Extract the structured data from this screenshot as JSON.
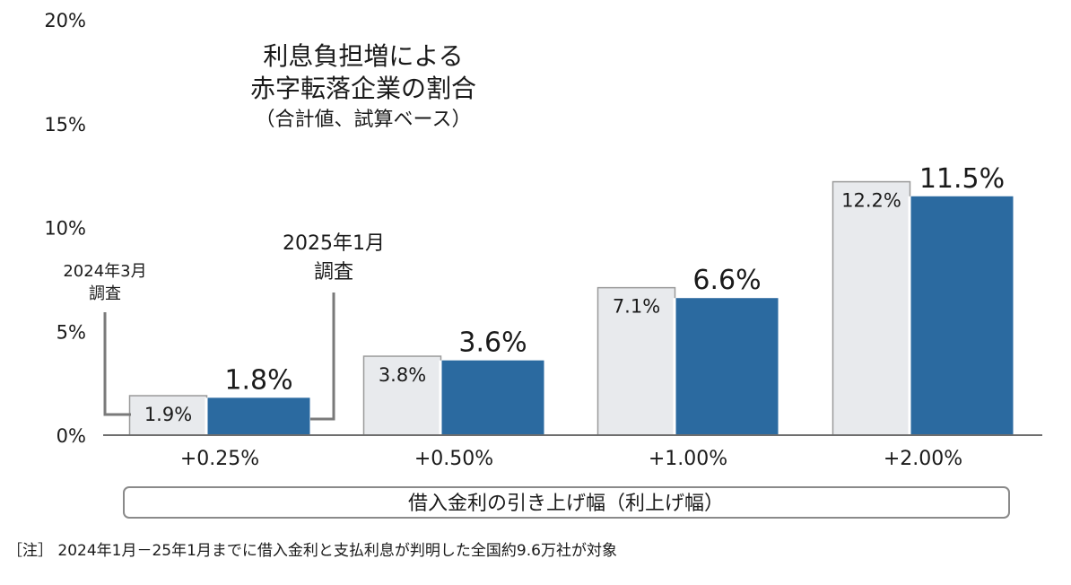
{
  "chart_data": {
    "type": "bar",
    "title_lines": [
      "利息負担増による",
      "赤字転落企業の割合"
    ],
    "subtitle": "（合計値、試算ベース）",
    "categories": [
      "+0.25%",
      "+0.50%",
      "+1.00%",
      "+2.00%"
    ],
    "series": [
      {
        "name": "2024年3月調査",
        "values": [
          1.9,
          3.8,
          7.1,
          12.2
        ],
        "labels": [
          "1.9%",
          "3.8%",
          "7.1%",
          "12.2%"
        ],
        "color": "#e8eaed"
      },
      {
        "name": "2025年1月調査",
        "values": [
          1.8,
          3.6,
          6.6,
          11.5
        ],
        "labels": [
          "1.8%",
          "3.6%",
          "6.6%",
          "11.5%"
        ],
        "color": "#2b6aa0"
      }
    ],
    "series_callouts": [
      {
        "line1": "2024年3月",
        "line2": "調査"
      },
      {
        "line1": "2025年1月",
        "line2": "調査"
      }
    ],
    "yticks": [
      "0%",
      "5%",
      "10%",
      "15%",
      "20%"
    ],
    "ytick_values": [
      0,
      5,
      10,
      15,
      20
    ],
    "ylim": [
      0,
      20
    ],
    "xlabel": "借入金利の引き上げ幅（利上げ幅）",
    "grid": false
  },
  "note": "［注］ 2024年1月－25年1月までに借入金利と支払利息が判明した全国約9.6万社が対象",
  "colors": {
    "prev_fill": "#e8eaed",
    "prev_stroke": "#9a9a9a",
    "curr_fill": "#2b6aa0",
    "axis": "#6e6e6e"
  }
}
